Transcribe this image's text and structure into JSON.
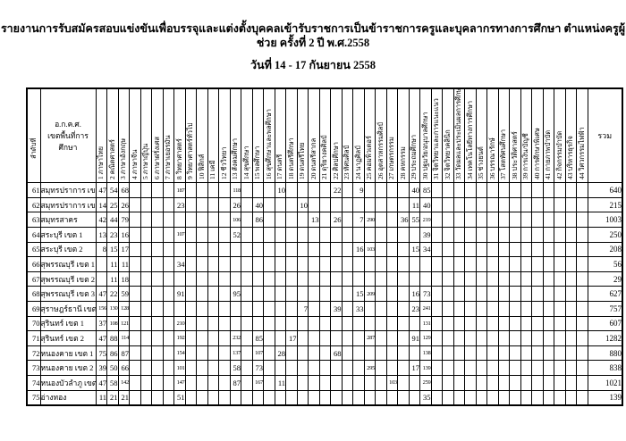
{
  "title": "รายงานการรับสมัครสอบแข่งขันเพื่อบรรจุและแต่งตั้งบุคคลเข้ารับราชการเป็นข้าราชการครูและบุคลากรทางการศึกษา ตำแหน่งครูผู้ช่วย ครั้งที่ 2 ปี พ.ศ.2558",
  "subtitle": "วันที่ 14 - 17 กันยายน 2558",
  "table": {
    "index_header": "ลำดับที่",
    "area_header_line1": "อ.ก.ค.ศ.",
    "area_header_line2": "เขตพื้นที่การศึกษา",
    "total_header": "รวม",
    "subject_columns": [
      "1 ภาษาไทย",
      "2 คณิตศาสตร์",
      "3 ภาษาอังกฤษ",
      "4 ภาษาจีน",
      "5 ภาษาญี่ปุ่น",
      "6 ภาษาฝรั่งเศส",
      "7 ภาษาเยอรมัน",
      "8 วิทยาศาสตร์",
      "9 วิทยาศาสตร์ทั่วไป",
      "10 ฟิสิกส์",
      "11 เคมี",
      "12 ชีววิทยา",
      "13 สังคมศึกษา",
      "14 สุขศึกษา",
      "15 พลศึกษา",
      "16 สุขศึกษาและพลศึกษา",
      "17 ดนตรี",
      "18 ดนตรีศึกษา",
      "19 ดนตรีไทย",
      "20 ดนตรีสากล",
      "21 ดุริยางคศิลป์",
      "22 ศิลปศึกษา",
      "23 ทัศนศิลป์",
      "24 นาฏศิลป์",
      "25 คอมพิวเตอร์",
      "26 อุตสาหกรรมศิลป์",
      "27 เกษตรกรรม",
      "28 คหกรรม",
      "29 ประถมศึกษา",
      "30 ปฐมวัย/อนุบาลศึกษา",
      "31 จิตวิทยาและการแนะแนว",
      "32 จิตวิทยาคลินิก",
      "33 วัดผลและประเมินผลการศึกษา",
      "34 เทคโนโลยีทางการศึกษา",
      "35 ช่างยนต์",
      "36 บรรณารักษ์",
      "37 โสตทัศนศึกษา",
      "38 ประวัติศาสตร์",
      "39 การเงิน/บัญชี",
      "40 การศึกษาพิเศษ",
      "41 กายภาพบำบัด",
      "42 กิจกรรมบำบัด",
      "43 บริหารธุรกิจ",
      "44 วิศวกรรมไฟฟ้า"
    ],
    "rows": [
      {
        "no": 61,
        "area": "สมุทรปราการ เขต 1",
        "values": {
          "1": 47,
          "2": 54,
          "3": 68,
          "8": 187,
          "13": 118,
          "17": 10,
          "22": 22,
          "24": 9,
          "29": 40,
          "30": 85
        },
        "total": 640
      },
      {
        "no": 62,
        "area": "สมุทรปราการ เขต 2",
        "values": {
          "1": 14,
          "2": 25,
          "3": 26,
          "8": 23,
          "13": 26,
          "15": 40,
          "19": 10,
          "29": 11,
          "30": 40
        },
        "total": 215
      },
      {
        "no": 63,
        "area": "สมุทรสาคร",
        "values": {
          "1": 42,
          "2": 44,
          "3": 79,
          "13": 106,
          "15": 86,
          "20": 13,
          "22": 26,
          "24": 7,
          "25": 290,
          "28": 36,
          "29": 55,
          "30": 219
        },
        "total": 1003
      },
      {
        "no": 64,
        "area": "สระบุรี เขต 1",
        "values": {
          "1": 13,
          "2": 23,
          "3": 16,
          "8": 107,
          "13": 52,
          "30": 39
        },
        "total": 250
      },
      {
        "no": 65,
        "area": "สระบุรี เขต 2",
        "values": {
          "1": 8,
          "2": 15,
          "3": 17,
          "24": 16,
          "25": 103,
          "29": 15,
          "30": 34
        },
        "total": 208
      },
      {
        "no": 66,
        "area": "สุพรรณบุรี เขต 1",
        "values": {
          "2": 11,
          "3": 11,
          "8": 34
        },
        "total": 56
      },
      {
        "no": 67,
        "area": "สุพรรณบุรี เขต 2",
        "values": {
          "2": 11,
          "3": 18
        },
        "total": 29
      },
      {
        "no": 68,
        "area": "สุพรรณบุรี เขต 3",
        "values": {
          "1": 47,
          "2": 22,
          "3": 59,
          "8": 91,
          "13": 95,
          "24": 15,
          "25": 209,
          "29": 16,
          "30": 73
        },
        "total": 627
      },
      {
        "no": 69,
        "area": "สุราษฎร์ธานี เขต 2",
        "values": {
          "1": 156,
          "2": 130,
          "3": 128,
          "19": 7,
          "22": 39,
          "24": 33,
          "29": 23,
          "30": 241
        },
        "total": 757
      },
      {
        "no": 70,
        "area": "สุรินทร์ เขต 1",
        "values": {
          "1": 37,
          "2": 108,
          "3": 121,
          "8": 210,
          "30": 131
        },
        "total": 607
      },
      {
        "no": 71,
        "area": "สุรินทร์ เขต 2",
        "values": {
          "1": 47,
          "2": 88,
          "3": 114,
          "8": 192,
          "13": 232,
          "15": 85,
          "18": 17,
          "25": 287,
          "29": 91,
          "30": 129
        },
        "total": 1282
      },
      {
        "no": 72,
        "area": "หนองคาย เขต 1",
        "values": {
          "1": 75,
          "2": 86,
          "3": 87,
          "8": 154,
          "13": 137,
          "15": 107,
          "17": 28,
          "22": 68,
          "30": 138
        },
        "total": 880
      },
      {
        "no": 73,
        "area": "หนองคาย เขต 2",
        "values": {
          "1": 39,
          "2": 50,
          "3": 66,
          "8": 101,
          "13": 58,
          "15": 73,
          "25": 295,
          "29": 17,
          "30": 139
        },
        "total": 838
      },
      {
        "no": 74,
        "area": "หนองบัวลำภู เขต 2",
        "values": {
          "1": 47,
          "2": 58,
          "3": 142,
          "8": 147,
          "13": 87,
          "15": 167,
          "17": 11,
          "27": 103,
          "30": 259
        },
        "total": 1021
      },
      {
        "no": 75,
        "area": "อ่างทอง",
        "values": {
          "1": 11,
          "2": 21,
          "3": 21,
          "8": 51,
          "30": 35
        },
        "total": 139
      }
    ]
  }
}
